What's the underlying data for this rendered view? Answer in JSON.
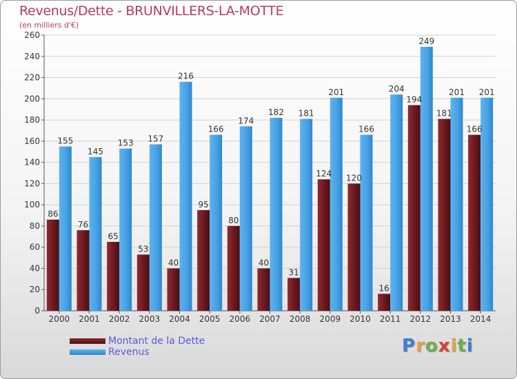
{
  "header": {
    "title": "Revenus/Dette - BRUNVILLERS-LA-MOTTE",
    "subtitle": "(en milliers d'€)"
  },
  "colors": {
    "title": "#b8395a",
    "dette": "#7a1c22",
    "revenus": "#4aa3e6",
    "legend_text": "#5a5adc",
    "axis_text": "#333333",
    "grid": "#d0d0d0"
  },
  "brand": {
    "letters": [
      "P",
      "r",
      "o",
      "x",
      "i",
      "t",
      "i"
    ],
    "colors": [
      "#3c7fd0",
      "#e8a23a",
      "#6ab04c",
      "#d8402f",
      "#e8a23a",
      "#6ab04c",
      "#3c7fd0"
    ]
  },
  "chart_data": {
    "type": "bar",
    "title": "Revenus/Dette - BRUNVILLERS-LA-MOTTE",
    "subtitle": "(en milliers d'€)",
    "categories": [
      "2000",
      "2001",
      "2002",
      "2003",
      "2004",
      "2005",
      "2006",
      "2007",
      "2008",
      "2009",
      "2010",
      "2011",
      "2012",
      "2013",
      "2014"
    ],
    "series": [
      {
        "name": "Montant de la Dette",
        "values": [
          86,
          76,
          65,
          53,
          40,
          95,
          80,
          40,
          31,
          124,
          120,
          16,
          194,
          181,
          166
        ]
      },
      {
        "name": "Revenus",
        "values": [
          155,
          145,
          153,
          157,
          216,
          166,
          174,
          182,
          181,
          201,
          166,
          204,
          249,
          201,
          201
        ]
      }
    ],
    "ylim": [
      0,
      260
    ],
    "yticks": [
      0,
      20,
      40,
      60,
      80,
      100,
      120,
      140,
      160,
      180,
      200,
      220,
      240,
      260
    ],
    "grid": true,
    "legend": "bottom-left"
  }
}
